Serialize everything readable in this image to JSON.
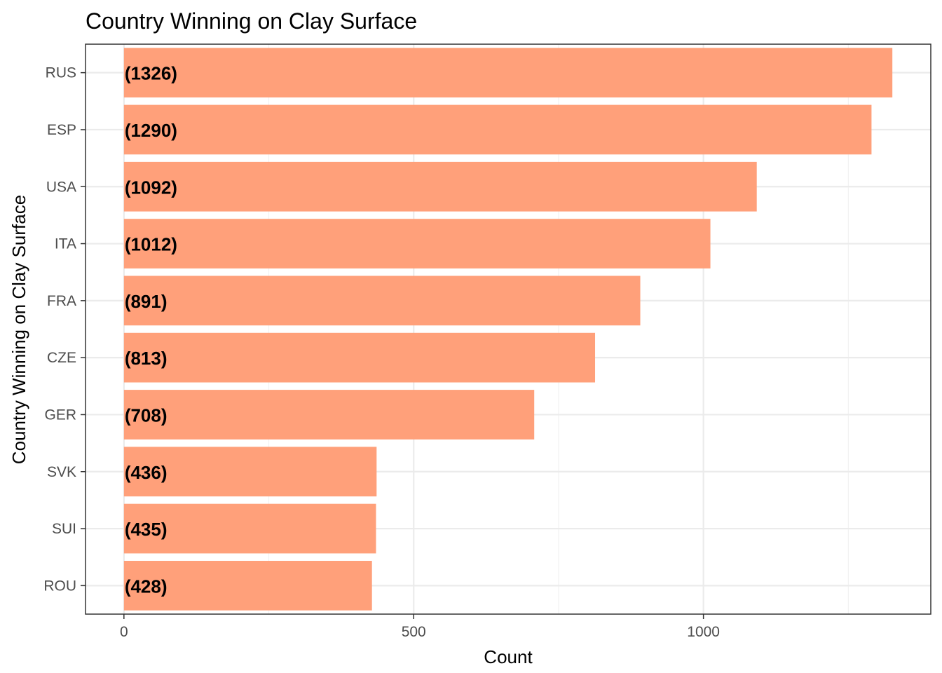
{
  "chart_data": {
    "type": "bar",
    "orientation": "horizontal",
    "title": "Country Winning on Clay Surface",
    "xlabel": "Count",
    "ylabel": "Country Winning on Clay Surface",
    "categories": [
      "RUS",
      "ESP",
      "USA",
      "ITA",
      "FRA",
      "CZE",
      "GER",
      "SVK",
      "SUI",
      "ROU"
    ],
    "values": [
      1326,
      1290,
      1092,
      1012,
      891,
      813,
      708,
      436,
      435,
      428
    ],
    "data_labels": [
      "(1326)",
      "(1290)",
      "(1092)",
      "(1012)",
      "(891)",
      "(813)",
      "(708)",
      "(436)",
      "(435)",
      "(428)"
    ],
    "xlim": [
      -66.3,
      1392.3
    ],
    "x_ticks": [
      0,
      500,
      1000
    ],
    "x_tick_labels": [
      "0",
      "500",
      "1000"
    ],
    "grid": true,
    "bar_color": "#ffa07a",
    "theme": "bw"
  }
}
